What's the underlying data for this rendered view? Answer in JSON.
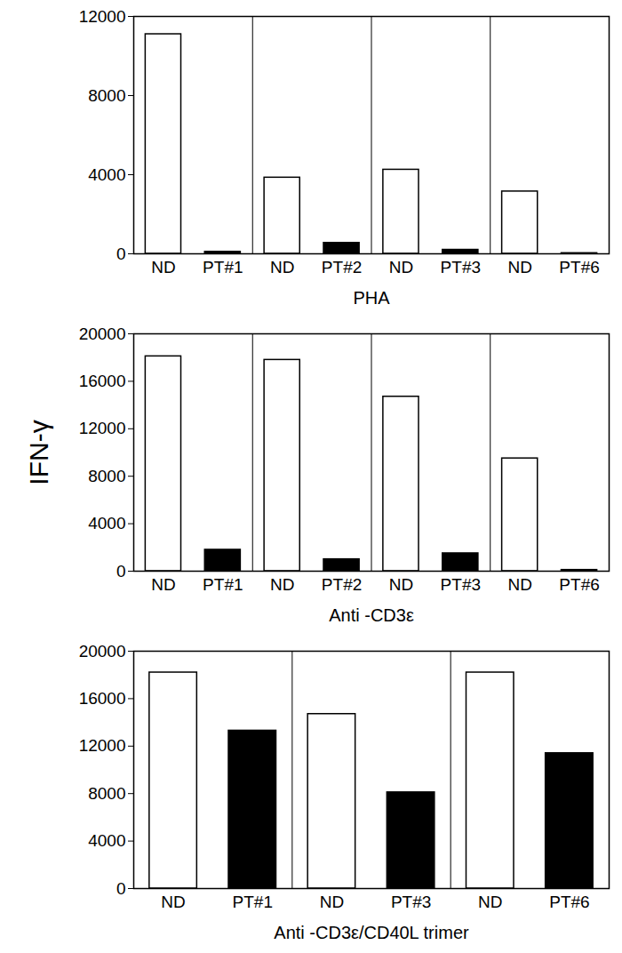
{
  "chart_data": [
    {
      "type": "bar",
      "xlabel": "PHA",
      "categories": [
        "ND",
        "PT#1",
        "ND",
        "PT#2",
        "ND",
        "PT#3",
        "ND",
        "PT#6"
      ],
      "values": [
        11100,
        100,
        3850,
        550,
        4250,
        200,
        3150,
        30
      ],
      "colors": [
        "#ffffff",
        "#000000",
        "#ffffff",
        "#000000",
        "#ffffff",
        "#000000",
        "#ffffff",
        "#000000"
      ],
      "ylim": [
        0,
        12000
      ],
      "yticks": [
        0,
        4000,
        8000,
        12000
      ]
    },
    {
      "type": "bar",
      "xlabel": "Anti -CD3ε",
      "ylabel": "IFN-γ",
      "categories": [
        "ND",
        "PT#1",
        "ND",
        "PT#2",
        "ND",
        "PT#3",
        "ND",
        "PT#6"
      ],
      "values": [
        18100,
        1800,
        17800,
        1000,
        14700,
        1500,
        9500,
        100
      ],
      "colors": [
        "#ffffff",
        "#000000",
        "#ffffff",
        "#000000",
        "#ffffff",
        "#000000",
        "#ffffff",
        "#000000"
      ],
      "ylim": [
        0,
        20000
      ],
      "yticks": [
        0,
        4000,
        8000,
        12000,
        16000,
        20000
      ]
    },
    {
      "type": "bar",
      "xlabel": "Anti -CD3ε/CD40L trimer",
      "categories": [
        "ND",
        "PT#1",
        "ND",
        "PT#3",
        "ND",
        "PT#6"
      ],
      "values": [
        18200,
        13300,
        14700,
        8100,
        18200,
        11400
      ],
      "colors": [
        "#ffffff",
        "#000000",
        "#ffffff",
        "#000000",
        "#ffffff",
        "#000000"
      ],
      "ylim": [
        0,
        20000
      ],
      "yticks": [
        0,
        4000,
        8000,
        12000,
        16000,
        20000
      ]
    }
  ]
}
